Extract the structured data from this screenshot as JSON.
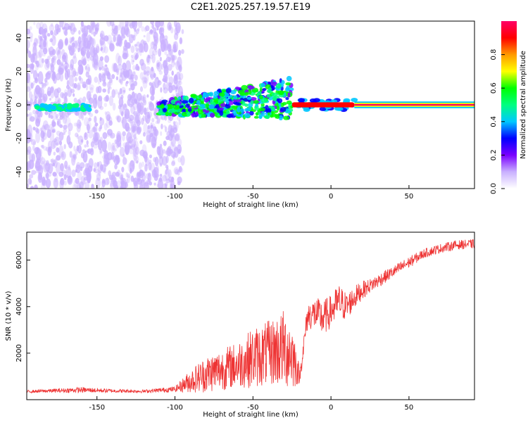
{
  "title": "C2E1.2025.257.19.57.E19",
  "chart_data": [
    {
      "type": "heatmap",
      "name": "spectrogram",
      "xlabel": "Height of straight line (km)",
      "ylabel": "Frequency (Hz)",
      "xlim": [
        -195,
        92
      ],
      "ylim": [
        -50,
        50
      ],
      "xticks": [
        -150,
        -100,
        -50,
        0,
        50
      ],
      "yticks": [
        -40,
        -20,
        0,
        20,
        40
      ],
      "features": [
        {
          "label": "noise-cloud",
          "x_range": [
            -195,
            -95
          ],
          "freq_range": [
            -50,
            50
          ],
          "amplitude": 0.12
        },
        {
          "label": "fragment-band",
          "x_range": [
            -110,
            -25
          ],
          "freq_range": [
            -8,
            10
          ],
          "amplitude": 0.35
        },
        {
          "label": "dense-core",
          "x_range": [
            -25,
            15
          ],
          "freq_range": [
            -3,
            3
          ],
          "amplitude": 0.9
        },
        {
          "label": "steady-line",
          "x_range": [
            15,
            92
          ],
          "freq_range": [
            -2,
            2
          ],
          "amplitude": 0.95
        }
      ],
      "colorbar": {
        "label": "Normalized spectral amplitude",
        "range": [
          0,
          1
        ],
        "ticks": [
          "0.0",
          "0.2",
          "0.4",
          "0.6",
          "0.8"
        ],
        "colors": [
          "#ffffff",
          "#c9b0ff",
          "#7a00ff",
          "#0000ff",
          "#00c8ff",
          "#00ff80",
          "#00ff00",
          "#ffff00",
          "#ff9900",
          "#ff0000",
          "#ff0066"
        ]
      }
    },
    {
      "type": "line",
      "name": "snr",
      "xlabel": "Height of straight line (km)",
      "ylabel": "SNR (10 * v/v)",
      "xlim": [
        -195,
        92
      ],
      "ylim": [
        0,
        7200
      ],
      "xticks": [
        -150,
        -100,
        -50,
        0,
        50
      ],
      "yticks": [
        2000,
        4000,
        6000
      ],
      "color": "#ee3333",
      "series": [
        {
          "name": "SNR",
          "x": [
            -195,
            -180,
            -160,
            -140,
            -120,
            -100,
            -90,
            -80,
            -70,
            -60,
            -50,
            -40,
            -30,
            -25,
            -20,
            -15,
            -10,
            -5,
            0,
            5,
            10,
            15,
            20,
            25,
            30,
            40,
            50,
            60,
            70,
            80,
            92
          ],
          "y": [
            350,
            380,
            420,
            380,
            360,
            450,
            800,
            1100,
            1300,
            1500,
            1800,
            2000,
            2200,
            2000,
            1000,
            3600,
            3700,
            3500,
            3800,
            4200,
            4000,
            4400,
            4700,
            4900,
            5100,
            5500,
            5900,
            6300,
            6500,
            6650,
            6700
          ],
          "noise": [
            60,
            80,
            120,
            80,
            70,
            120,
            500,
            800,
            900,
            1000,
            1300,
            1400,
            1700,
            1600,
            300,
            600,
            700,
            800,
            700,
            800,
            600,
            500,
            400,
            300,
            300,
            250,
            250,
            200,
            200,
            200,
            200
          ]
        }
      ]
    }
  ]
}
